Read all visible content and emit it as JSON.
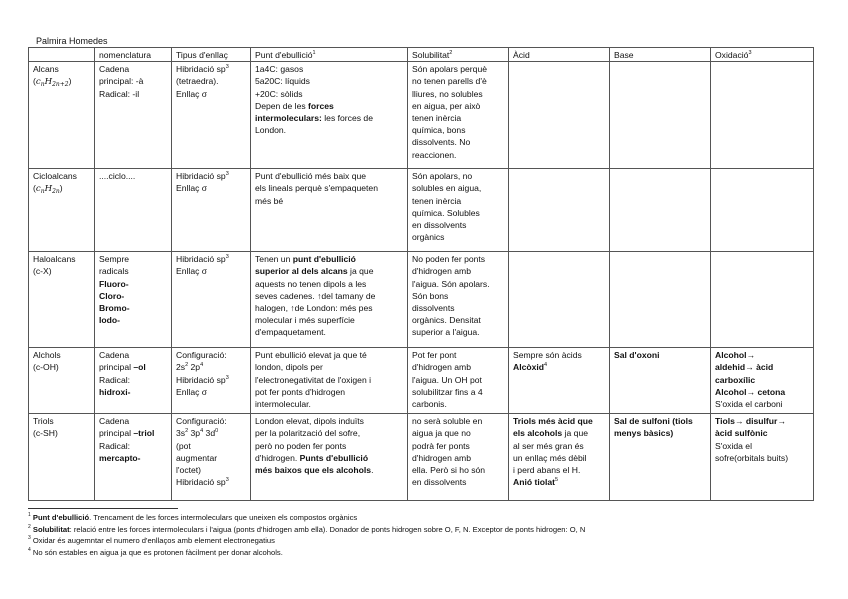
{
  "author": "Palmira Homedes",
  "table": {
    "headers": [
      [
        ""
      ],
      [
        "nomenclatura"
      ],
      [
        "Tipus d'enllaç"
      ],
      [
        [
          "Punt d'ebullició",
          {
            "t": "1",
            "f": "sup"
          }
        ]
      ],
      [
        [
          "Solubilitat",
          {
            "t": "2",
            "f": "sup"
          }
        ]
      ],
      [
        "Àcid"
      ],
      [
        "Base"
      ],
      [
        [
          "Oxidació",
          {
            "t": "3",
            "f": "sup"
          }
        ]
      ]
    ],
    "rows": [
      {
        "cells": [
          [
            "Alcans",
            [
              "(",
              {
                "t": "c",
                "f": "i"
              },
              {
                "t": "n",
                "f": "sub"
              },
              {
                "t": "H",
                "f": "i"
              },
              {
                "t": "2n+2",
                "f": "sub"
              },
              ")"
            ]
          ],
          [
            "Cadena",
            "principal: -à",
            "Radical: -il"
          ],
          [
            [
              "Hibridació sp",
              {
                "t": "3",
                "f": "sup"
              }
            ],
            "(tetraedra).",
            "Enllaç σ"
          ],
          [
            "1a4C: gasos",
            "5a20C: líquids",
            "+20C: sòlids",
            [
              "Depen de les ",
              {
                "t": "forces",
                "f": "b"
              }
            ],
            [
              {
                "t": "intermoleculars:",
                "f": "b"
              },
              " les forces de"
            ],
            "London."
          ],
          [
            "Són apolars perquè",
            "no tenen parells d'è",
            "lliures, no solubles",
            "en aigua, per això",
            "tenen inèrcia",
            "química, bons",
            "dissolvents. No",
            "reaccionen."
          ],
          [],
          [],
          []
        ]
      },
      {
        "cells": [
          [
            "Cicloalcans",
            [
              "(",
              {
                "t": "c",
                "f": "i"
              },
              {
                "t": "n",
                "f": "sub"
              },
              {
                "t": "H",
                "f": "i"
              },
              {
                "t": "2n",
                "f": "sub"
              },
              ")"
            ]
          ],
          [
            "....ciclo...."
          ],
          [
            [
              "Hibridació sp",
              {
                "t": "3",
                "f": "sup"
              }
            ],
            "Enllaç σ"
          ],
          [
            "Punt d'ebullició més baix que",
            "els lineals perquè s'empaqueten",
            "més bé"
          ],
          [
            "Són apolars, no",
            "solubles en aigua,",
            "tenen inèrcia",
            "química. Solubles",
            "en dissolvents",
            "orgànics"
          ],
          [],
          [],
          []
        ]
      },
      {
        "cells": [
          [
            "Haloalcans",
            "(c-X)"
          ],
          [
            "Sempre",
            "radicals",
            [
              {
                "t": "Fluoro-",
                "f": "b"
              }
            ],
            [
              {
                "t": "Cloro-",
                "f": "b"
              }
            ],
            [
              {
                "t": "Bromo-",
                "f": "b"
              }
            ],
            [
              {
                "t": "Iodo-",
                "f": "b"
              }
            ]
          ],
          [
            [
              "Hibridació sp",
              {
                "t": "3",
                "f": "sup"
              }
            ],
            "Enllaç σ"
          ],
          [
            [
              "Tenen un ",
              {
                "t": "punt d'ebullició",
                "f": "b"
              }
            ],
            [
              {
                "t": "superior al dels alcans",
                "f": "b"
              },
              " ja que"
            ],
            "aquests no tenen dipols a les",
            "seves cadenes. ↑del tamany de",
            "halogen, ↑de London: més pes",
            "molecular i més superfície",
            "d'empaquetament."
          ],
          [
            "No poden fer ponts",
            "d'hidrogen amb",
            "l'aigua. Són apolars.",
            "Són bons",
            "dissolvents",
            "orgànics. Densitat",
            "superior a l'aigua."
          ],
          [],
          [],
          []
        ]
      },
      {
        "cells": [
          [
            "Alchols",
            "(c-OH)"
          ],
          [
            "Cadena",
            [
              "principal ",
              {
                "t": "–ol",
                "f": "b"
              }
            ],
            "Radical:",
            [
              {
                "t": "hidroxi-",
                "f": "b"
              }
            ]
          ],
          [
            "Configuració:",
            [
              "2s",
              {
                "t": "2",
                "f": "sup"
              },
              " 2p",
              {
                "t": "4",
                "f": "sup"
              }
            ],
            [
              "Hibridació sp",
              {
                "t": "3",
                "f": "sup"
              }
            ],
            "Enllaç σ"
          ],
          [
            "Punt ebullició elevat ja que té",
            "london, dipols per",
            "l'electronegativitat de l'oxigen i",
            "pot fer ponts d'hidrogen",
            "intermolecular."
          ],
          [
            "Pot fer pont",
            "d'hidrogen amb",
            "l'aigua. Un OH pot",
            "solubilitzar fins a 4",
            "carbonis."
          ],
          [
            "Sempre són àcids",
            [
              {
                "t": "Alcòxid",
                "f": "b"
              },
              {
                "t": "4",
                "f": "sup"
              }
            ]
          ],
          [
            [
              {
                "t": "Sal d'oxoni",
                "f": "b"
              }
            ]
          ],
          [
            [
              {
                "t": "Alcohol→",
                "f": "b"
              }
            ],
            [
              {
                "t": "aldehid→ àcid",
                "f": "b"
              }
            ],
            [
              {
                "t": "carboxílic",
                "f": "b"
              }
            ],
            [
              {
                "t": "Alcohol→ cetona",
                "f": "b"
              }
            ],
            "S'oxida el carboni"
          ]
        ]
      },
      {
        "cells": [
          [
            "Triols",
            "(c-SH)"
          ],
          [
            "Cadena",
            [
              "principal ",
              {
                "t": "–triol",
                "f": "b"
              }
            ],
            "Radical:",
            [
              {
                "t": "mercapto-",
                "f": "b"
              }
            ]
          ],
          [
            "Configuració:",
            [
              "3s",
              {
                "t": "2",
                "f": "sup"
              },
              " 3p",
              {
                "t": "4",
                "f": "sup"
              },
              " 3d",
              {
                "t": "0",
                "f": "sup"
              }
            ],
            "(pot",
            "augmentar",
            "l'octet)",
            [
              "Hibridació sp",
              {
                "t": "3",
                "f": "sup"
              }
            ]
          ],
          [
            "London elevat, dipols induïts",
            "per la polarització del sofre,",
            "però no poden fer ponts",
            [
              "d'hidrogen. ",
              {
                "t": "Punts d'ebullició",
                "f": "b"
              }
            ],
            [
              {
                "t": "més baixos que els alcohols",
                "f": "b"
              },
              "."
            ]
          ],
          [
            "no serà soluble en",
            "aigua ja que no",
            "podrà fer ponts",
            "d'hidrogen amb",
            "ella. Però si ho són",
            "en dissolvents"
          ],
          [
            [
              {
                "t": "Triols més àcid que",
                "f": "b"
              }
            ],
            [
              {
                "t": "els alcohols",
                "f": "b"
              },
              " ja que"
            ],
            "al ser més gran és",
            "un enllaç més dèbil",
            "i perd abans el H.",
            [
              {
                "t": "Anió tiolat",
                "f": "b"
              },
              {
                "t": "5",
                "f": "sup"
              }
            ]
          ],
          [
            [
              {
                "t": "Sal de sulfoni (tiols",
                "f": "b"
              }
            ],
            [
              {
                "t": "menys bàsics)",
                "f": "b"
              }
            ]
          ],
          [
            [
              {
                "t": "Tiols→ disulfur→",
                "f": "b"
              }
            ],
            [
              {
                "t": "àcid sulfònic",
                "f": "b"
              }
            ],
            "S'oxida el",
            "sofre(orbitals buits)"
          ]
        ]
      }
    ]
  },
  "footnotes": [
    [
      {
        "t": "1",
        "f": "sup"
      },
      " ",
      {
        "t": "Punt d'ebullició",
        "f": "b"
      },
      ". Trencament de les forces intermoleculars que uneixen els compostos orgànics"
    ],
    [
      {
        "t": "2",
        "f": "sup"
      },
      " ",
      {
        "t": "Solubilitat",
        "f": "b"
      },
      ": relació entre les forces intermoleculars i l'aigua (ponts d'hidrogen amb ella). Donador de ponts hidrogen sobre O, F, N. Exceptor de ponts hidrogen: O, N"
    ],
    [
      {
        "t": "3",
        "f": "sup"
      },
      " Oxidar és augemntar el numero d'enllaços amb element electronegatius"
    ],
    [
      {
        "t": "4",
        "f": "sup"
      },
      " No són estables en aigua ja que es protonen fàcilment per donar alcohols."
    ]
  ]
}
